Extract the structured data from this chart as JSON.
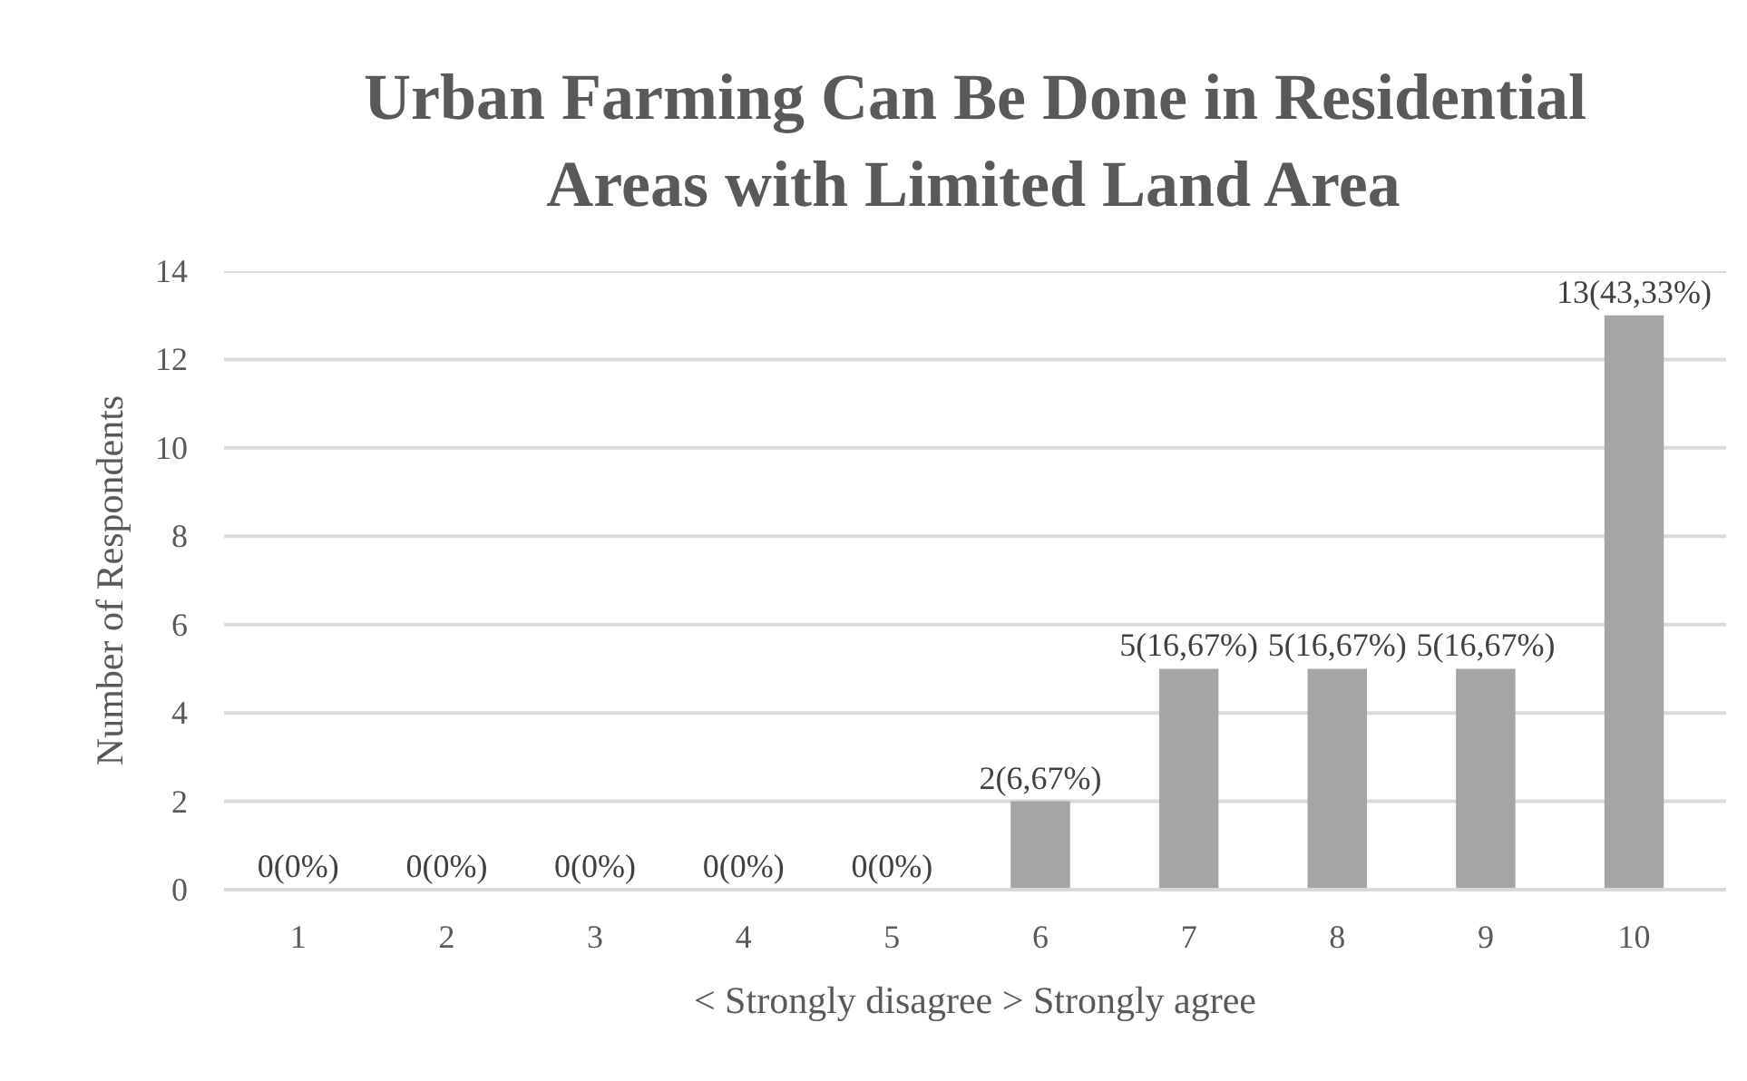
{
  "chart_data": {
    "type": "bar",
    "title": "Urban Farming Can Be Done in Residential Areas with Limited Land Area",
    "xlabel": "< Strongly disagree > Strongly agree",
    "ylabel": "Number of Respondents",
    "categories": [
      "1",
      "2",
      "3",
      "4",
      "5",
      "6",
      "7",
      "8",
      "9",
      "10"
    ],
    "values": [
      0,
      0,
      0,
      0,
      0,
      2,
      5,
      5,
      5,
      13
    ],
    "value_labels": [
      "0(0%)",
      "0(0%)",
      "0(0%)",
      "0(0%)",
      "0(0%)",
      "2(6,67%)",
      "5(16,67%)",
      "5(16,67%)",
      "5(16,67%)",
      "13(43,33%)"
    ],
    "color": "#a5a5a5",
    "ylim": [
      0,
      14
    ],
    "yticks": [
      0,
      2,
      4,
      6,
      8,
      10,
      12,
      14
    ],
    "grid": "y"
  }
}
